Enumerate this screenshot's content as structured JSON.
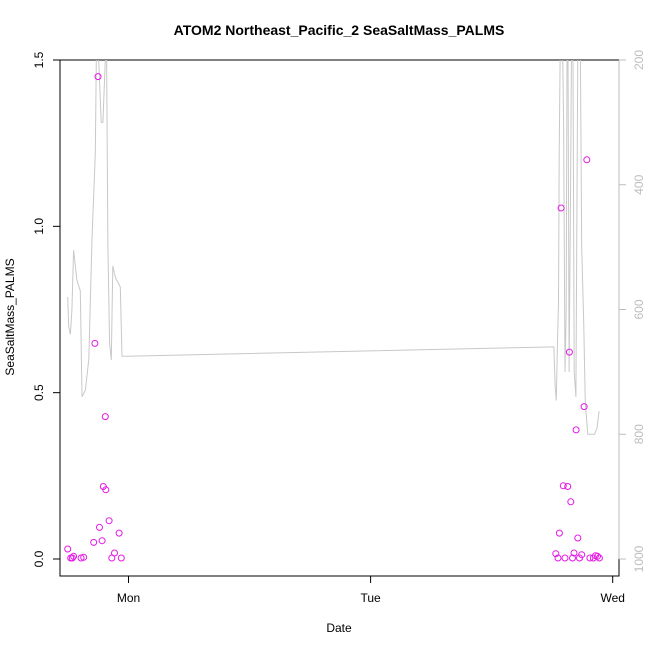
{
  "chart_data": {
    "type": "scatter",
    "title": "ATOM2 Northeast_Pacific_2 SeaSaltMass_PALMS",
    "xlabel": "Date",
    "ylabel": "SeaSaltMass_PALMS",
    "x_ticks": [
      "Mon",
      "Tue",
      "Wed"
    ],
    "x_tick_pos": [
      0,
      1,
      2
    ],
    "xlim": [
      -0.283,
      2.026
    ],
    "ylim": [
      0,
      1.5
    ],
    "y_ticks": [
      "0.0",
      "0.5",
      "1.0",
      "1.5"
    ],
    "y_tick_values": [
      0,
      0.5,
      1.0,
      1.5
    ],
    "y2_ticks": [
      "200",
      "400",
      "600",
      "800",
      "1000"
    ],
    "y2_tick_values": [
      200,
      400,
      600,
      800,
      1000
    ],
    "y2lim": [
      1000,
      200
    ],
    "point_color": "#e619e6",
    "line_color": "#c8c8c8",
    "grid": false,
    "legend": "none",
    "series": [
      {
        "kind": "points",
        "points": [
          [
            -0.251,
            0.03
          ],
          [
            -0.239,
            0.003
          ],
          [
            -0.232,
            0.003
          ],
          [
            -0.227,
            0.008
          ],
          [
            -0.196,
            0.003
          ],
          [
            -0.185,
            0.005
          ],
          [
            -0.144,
            0.05
          ],
          [
            -0.139,
            0.648
          ],
          [
            -0.126,
            1.45
          ],
          [
            -0.12,
            0.095
          ],
          [
            -0.109,
            0.055
          ],
          [
            -0.104,
            0.218
          ],
          [
            -0.096,
            0.428
          ],
          [
            -0.094,
            0.208
          ],
          [
            -0.08,
            0.115
          ],
          [
            -0.069,
            0.003
          ],
          [
            -0.058,
            0.018
          ],
          [
            -0.039,
            0.078
          ],
          [
            -0.03,
            0.003
          ],
          [
            1.765,
            0.016
          ],
          [
            1.774,
            0.003
          ],
          [
            1.78,
            0.078
          ],
          [
            1.787,
            1.055
          ],
          [
            1.796,
            0.22
          ],
          [
            1.803,
            0.003
          ],
          [
            1.814,
            0.218
          ],
          [
            1.821,
            0.622
          ],
          [
            1.827,
            0.172
          ],
          [
            1.834,
            0.003
          ],
          [
            1.84,
            0.018
          ],
          [
            1.849,
            0.388
          ],
          [
            1.856,
            0.063
          ],
          [
            1.863,
            0.003
          ],
          [
            1.872,
            0.013
          ],
          [
            1.882,
            0.458
          ],
          [
            1.893,
            1.2
          ],
          [
            1.906,
            0.003
          ],
          [
            1.92,
            0.003
          ],
          [
            1.929,
            0.01
          ],
          [
            1.937,
            0.008
          ],
          [
            1.945,
            0.003
          ]
        ]
      },
      {
        "kind": "line",
        "name": "",
        "segments": [
          [
            [
              -0.251,
              580
            ],
            [
              -0.247,
              627
            ],
            [
              -0.24,
              640
            ],
            [
              -0.234,
              601
            ],
            [
              -0.227,
              505
            ],
            [
              -0.213,
              553
            ],
            [
              -0.199,
              570
            ],
            [
              -0.192,
              740
            ],
            [
              -0.178,
              729
            ],
            [
              -0.164,
              680
            ],
            [
              -0.151,
              486
            ],
            [
              -0.137,
              350
            ],
            [
              -0.13,
              100
            ],
            [
              -0.123,
              200
            ],
            [
              -0.113,
              300
            ],
            [
              -0.106,
              300
            ],
            [
              -0.096,
              200
            ],
            [
              -0.092,
              100
            ],
            [
              -0.085,
              500
            ],
            [
              -0.078,
              655
            ],
            [
              -0.071,
              681
            ],
            [
              -0.065,
              530
            ],
            [
              -0.058,
              543
            ],
            [
              -0.052,
              551
            ],
            [
              -0.044,
              556
            ],
            [
              -0.034,
              564
            ],
            [
              -0.027,
              675
            ],
            [
              1.757,
              660
            ],
            [
              1.762,
              722
            ],
            [
              1.767,
              746
            ],
            [
              1.772,
              650
            ],
            [
              1.776,
              590
            ],
            [
              1.779,
              350
            ],
            [
              1.784,
              150
            ],
            [
              1.79,
              100
            ],
            [
              1.797,
              300
            ],
            [
              1.803,
              700
            ],
            [
              1.808,
              600
            ],
            [
              1.812,
              100
            ],
            [
              1.815,
              140
            ],
            [
              1.82,
              700
            ],
            [
              1.826,
              400
            ],
            [
              1.831,
              100
            ],
            [
              1.836,
              200
            ],
            [
              1.841,
              700
            ],
            [
              1.848,
              740
            ],
            [
              1.857,
              100
            ],
            [
              1.865,
              100
            ],
            [
              1.872,
              500
            ],
            [
              1.88,
              620
            ],
            [
              1.887,
              750
            ],
            [
              1.897,
              800
            ],
            [
              1.913,
              800
            ],
            [
              1.925,
              800
            ],
            [
              1.935,
              790
            ],
            [
              1.944,
              763
            ]
          ]
        ]
      }
    ]
  }
}
